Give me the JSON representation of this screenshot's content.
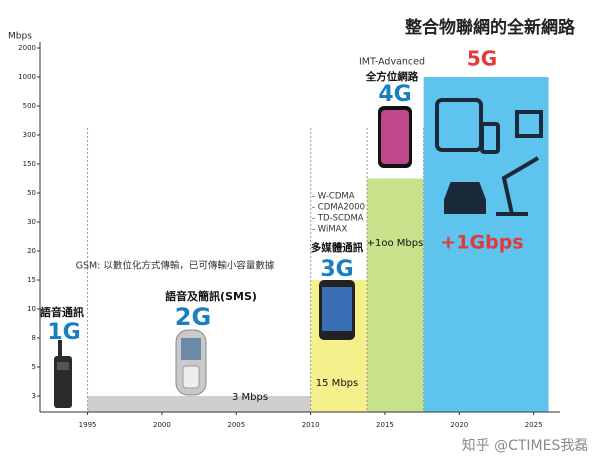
{
  "chart_data": {
    "type": "era-bar",
    "title": "整合物聯網的全新網路",
    "y_label": "Mbps",
    "xlim": [
      1991.8,
      2026.3
    ],
    "xticks": [
      1995,
      2000,
      2005,
      2010,
      2015,
      2020,
      2025
    ],
    "ylim": [
      0,
      2000
    ],
    "yticks": [
      3,
      5,
      8,
      10,
      15,
      20,
      30,
      50,
      150,
      300,
      500,
      1000,
      2000
    ],
    "first_era": {
      "name": "1G",
      "caption": "語音通訊"
    },
    "eras": [
      {
        "name": "2G",
        "caption": "語音及簡訊(SMS)",
        "note": "GSM: 以數位化方式傳輸，已可傳輸小容量數據",
        "start": 1995,
        "end": 2010,
        "value": 3,
        "value_label": "3 Mbps",
        "color": "#cfcfcf"
      },
      {
        "name": "3G",
        "caption": "多媒體通訊",
        "standards": [
          "- W-CDMA",
          "- CDMA2000",
          "- TD-SCDMA",
          "- WiMAX"
        ],
        "start": 2010,
        "end": 2013.8,
        "value": 15,
        "value_label": "15 Mbps",
        "color": "#f4f08c"
      },
      {
        "name": "4G",
        "caption": "全方位網路",
        "standard": "IMT-Advanced",
        "start": 2013.8,
        "end": 2017.6,
        "value": 100,
        "value_label": "+1oo Mbps",
        "color": "#c8e28c"
      },
      {
        "name": "5G",
        "start": 2017.6,
        "end": 2026,
        "value": 1000,
        "value_label": "+1Gbps",
        "color": "#5ec4ee"
      }
    ],
    "watermark": "知乎 @CTIMES我磊"
  }
}
